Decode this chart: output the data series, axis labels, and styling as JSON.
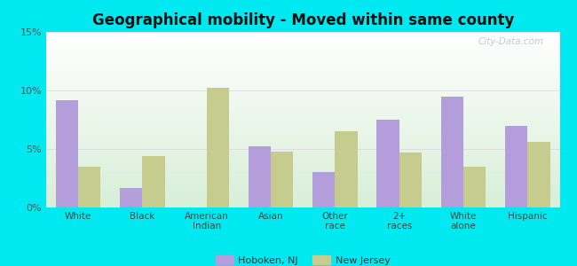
{
  "title": "Geographical mobility - Moved within same county",
  "categories": [
    "White",
    "Black",
    "American\nIndian",
    "Asian",
    "Other\nrace",
    "2+\nraces",
    "White\nalone",
    "Hispanic"
  ],
  "hoboken_values": [
    9.2,
    1.7,
    0.0,
    5.2,
    3.0,
    7.5,
    9.5,
    7.0
  ],
  "nj_values": [
    3.5,
    4.4,
    10.2,
    4.8,
    6.5,
    4.7,
    3.5,
    5.6
  ],
  "hoboken_color": "#b39ddb",
  "nj_color": "#c5cc8e",
  "ylim": [
    0,
    15
  ],
  "yticks": [
    0,
    5,
    10,
    15
  ],
  "ytick_labels": [
    "0%",
    "5%",
    "10%",
    "15%"
  ],
  "background_color": "#00e8f0",
  "bar_width": 0.35,
  "legend_hoboken": "Hoboken, NJ",
  "legend_nj": "New Jersey",
  "watermark": "City-Data.com"
}
